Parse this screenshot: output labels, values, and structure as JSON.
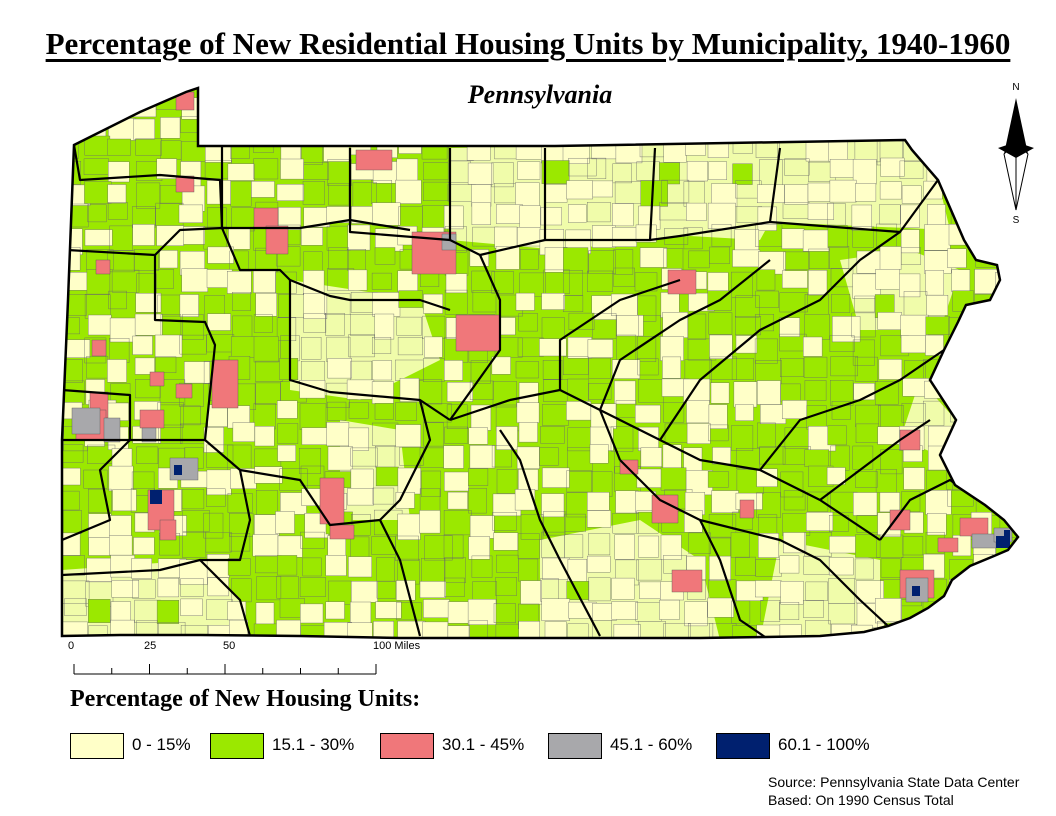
{
  "title": "Percentage of New Residential Housing Units by Municipality, 1940-1960",
  "subtitle": "Pennsylvania",
  "north_arrow": {
    "top_label": "N",
    "bottom_label": "S"
  },
  "scale_bar": {
    "labels": [
      "0",
      "25",
      "50",
      "100 Miles"
    ],
    "miles": [
      0,
      25,
      50,
      100
    ]
  },
  "legend": {
    "title": "Percentage of New Housing Units:",
    "classes": [
      {
        "label": "0 - 15%",
        "color": "#ffffc8"
      },
      {
        "label": "15.1 - 30%",
        "color": "#9be800"
      },
      {
        "label": "30.1 - 45%",
        "color": "#f0777a"
      },
      {
        "label": "45.1 - 60%",
        "color": "#a8a8ab"
      },
      {
        "label": "60.1 - 100%",
        "color": "#00206f"
      }
    ]
  },
  "source": {
    "line1": "Source: Pennsylvania State Data Center",
    "line2": "Based: On 1990 Census Total"
  },
  "colors": {
    "border": "#000000",
    "municipal_line": "#6a6a6a"
  }
}
